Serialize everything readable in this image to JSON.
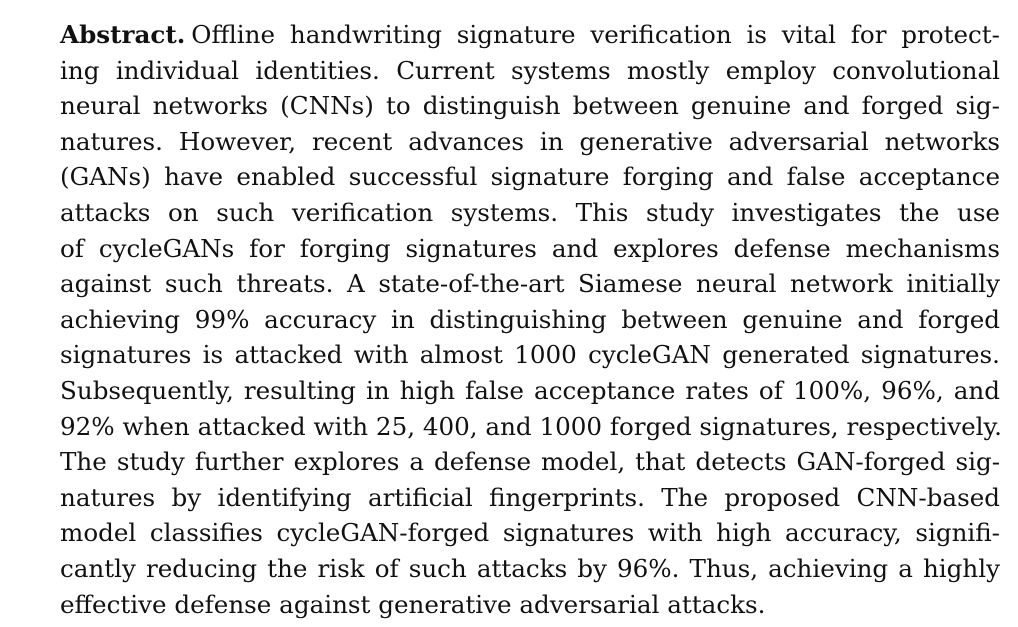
{
  "abstract": {
    "label": "Abstract.",
    "lines": [
      "Offline handwriting signature verification is vital for protect-",
      "ing individual identities. Current systems mostly employ convolutional",
      "neural networks (CNNs) to distinguish between genuine and forged sig-",
      "natures. However, recent advances in generative adversarial networks",
      "(GANs) have enabled successful signature forging and false acceptance",
      "attacks on such verification systems. This study investigates the use",
      "of cycleGANs for forging signatures and explores defense mechanisms",
      "against such threats. A state-of-the-art Siamese neural network initially",
      "achieving 99% accuracy in distinguishing between genuine and forged",
      "signatures is attacked with almost 1000 cycleGAN generated signatures.",
      "Subsequently, resulting in high false acceptance rates of 100%, 96%, and",
      "92% when attacked with 25, 400, and 1000 forged signatures, respectively.",
      "The study further explores a defense model, that detects GAN-forged sig-",
      "natures by identifying artificial fingerprints. The proposed CNN-based",
      "model classifies cycleGAN-forged signatures with high accuracy, signifi-",
      "cantly reducing the risk of such attacks by 96%. Thus, achieving a highly",
      "effective defense against generative adversarial attacks."
    ]
  }
}
